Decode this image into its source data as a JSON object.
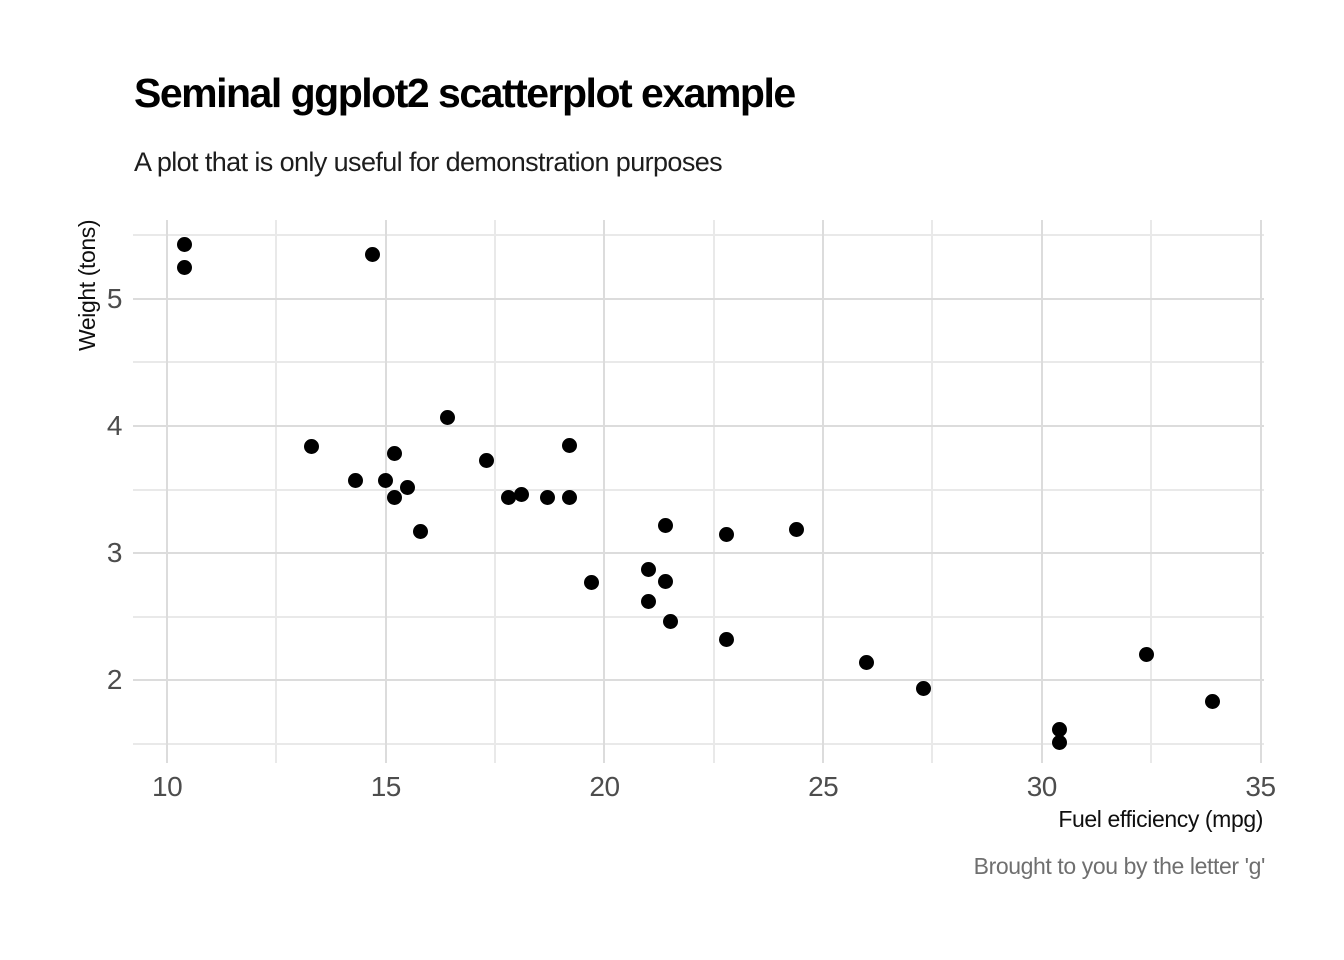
{
  "chart_data": {
    "type": "scatter",
    "title": "Seminal ggplot2 scatterplot example",
    "subtitle": "A plot that is only useful for demonstration purposes",
    "caption": "Brought to you by the letter 'g'",
    "xlabel": "Fuel efficiency (mpg)",
    "ylabel": "Weight (tons)",
    "xlim": [
      9.22,
      35.08
    ],
    "ylim": [
      1.35,
      5.62
    ],
    "x_major_ticks": [
      10,
      15,
      20,
      25,
      30,
      35
    ],
    "x_minor_gridlines": [
      12.5,
      17.5,
      22.5,
      27.5,
      32.5
    ],
    "y_major_ticks": [
      2,
      3,
      4,
      5
    ],
    "y_minor_gridlines": [
      1.5,
      2.5,
      3.5,
      4.5,
      5.5
    ],
    "grid": "major and minor gridlines, no axis lines, no tick marks",
    "legend": "none",
    "colors": {
      "background": "#ffffff",
      "point": "#000000",
      "grid_major": "#dcdcdc",
      "grid_minor": "#e9e9e9",
      "tick_label": "#4d4d4d",
      "axis_title": "#0f0f0f",
      "title": "#000000",
      "subtitle": "#1d1d1d",
      "caption": "#6f6f6f"
    },
    "points": [
      [
        21.0,
        2.62
      ],
      [
        21.0,
        2.875
      ],
      [
        22.8,
        2.32
      ],
      [
        21.4,
        3.215
      ],
      [
        18.7,
        3.44
      ],
      [
        18.1,
        3.46
      ],
      [
        14.3,
        3.57
      ],
      [
        24.4,
        3.19
      ],
      [
        22.8,
        3.15
      ],
      [
        19.2,
        3.44
      ],
      [
        17.8,
        3.44
      ],
      [
        16.4,
        4.07
      ],
      [
        17.3,
        3.73
      ],
      [
        15.2,
        3.78
      ],
      [
        10.4,
        5.25
      ],
      [
        10.4,
        5.424
      ],
      [
        14.7,
        5.345
      ],
      [
        32.4,
        2.2
      ],
      [
        30.4,
        1.615
      ],
      [
        33.9,
        1.835
      ],
      [
        21.5,
        2.465
      ],
      [
        15.5,
        3.52
      ],
      [
        15.2,
        3.435
      ],
      [
        13.3,
        3.84
      ],
      [
        19.2,
        3.845
      ],
      [
        27.3,
        1.935
      ],
      [
        26.0,
        2.14
      ],
      [
        30.4,
        1.513
      ],
      [
        15.8,
        3.17
      ],
      [
        19.7,
        2.77
      ],
      [
        15.0,
        3.57
      ],
      [
        21.4,
        2.78
      ]
    ]
  }
}
